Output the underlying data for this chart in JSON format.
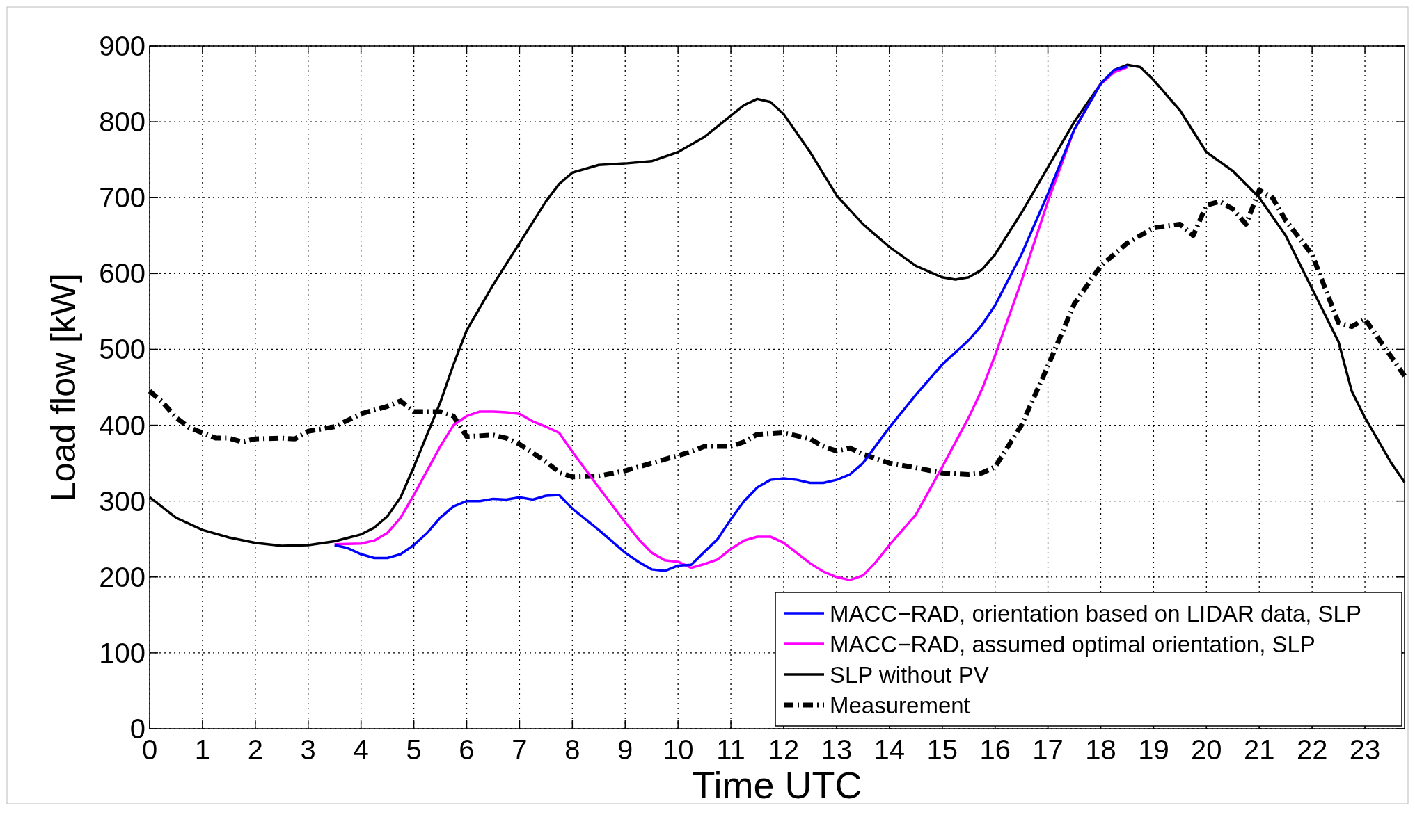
{
  "chart_data": {
    "type": "line",
    "xlabel": "Time UTC",
    "ylabel": "Load flow [kW]",
    "xlim": [
      0,
      23.75
    ],
    "xticks": [
      0,
      1,
      2,
      3,
      4,
      5,
      6,
      7,
      8,
      9,
      10,
      11,
      12,
      13,
      14,
      15,
      16,
      17,
      18,
      19,
      20,
      21,
      22,
      23
    ],
    "ylim": [
      0,
      900
    ],
    "yticks": [
      0,
      100,
      200,
      300,
      400,
      500,
      600,
      700,
      800,
      900
    ],
    "grid": true,
    "legend": "bottom right",
    "line_style": "solid",
    "series": [
      {
        "name": "MACC−RAD, orientation based on LIDAR data, SLP",
        "color": "#0000ff",
        "x": [
          3.5,
          3.75,
          4,
          4.25,
          4.5,
          4.75,
          5,
          5.25,
          5.5,
          5.75,
          6,
          6.25,
          6.5,
          6.75,
          7,
          7.25,
          7.5,
          7.75,
          8,
          8.5,
          9,
          9.25,
          9.5,
          9.75,
          10,
          10.25,
          10.5,
          10.75,
          11,
          11.25,
          11.5,
          11.75,
          12,
          12.25,
          12.5,
          12.75,
          13,
          13.25,
          13.5,
          14,
          14.5,
          15,
          15.5,
          15.75,
          16,
          16.5,
          17,
          17.5,
          18,
          18.25,
          18.5
        ],
        "values": [
          242,
          238,
          230,
          225,
          225,
          230,
          242,
          258,
          278,
          293,
          300,
          300,
          303,
          302,
          305,
          302,
          307,
          308,
          290,
          262,
          232,
          220,
          210,
          208,
          215,
          216,
          233,
          250,
          276,
          300,
          318,
          328,
          330,
          328,
          324,
          324,
          328,
          335,
          350,
          397,
          440,
          480,
          512,
          532,
          558,
          625,
          705,
          790,
          850,
          868,
          873
        ]
      },
      {
        "name": "MACC−RAD, assumed optimal orientation, SLP",
        "color": "#ff00ff",
        "x": [
          3.5,
          4,
          4.25,
          4.5,
          4.75,
          5,
          5.5,
          5.75,
          6,
          6.25,
          6.5,
          6.75,
          7,
          7.25,
          7.5,
          7.75,
          8,
          8.5,
          9,
          9.25,
          9.5,
          9.75,
          10,
          10.25,
          10.5,
          10.75,
          11,
          11.25,
          11.5,
          11.75,
          12,
          12.5,
          12.75,
          13,
          13.25,
          13.5,
          13.75,
          14,
          14.5,
          15,
          15.5,
          15.75,
          16,
          16.5,
          17,
          17.5,
          18,
          18.25,
          18.5
        ],
        "values": [
          243,
          244,
          248,
          258,
          278,
          308,
          372,
          400,
          412,
          418,
          418,
          417,
          415,
          405,
          398,
          390,
          365,
          318,
          272,
          250,
          232,
          222,
          220,
          212,
          217,
          223,
          237,
          248,
          253,
          253,
          245,
          218,
          207,
          200,
          196,
          202,
          220,
          242,
          282,
          345,
          410,
          447,
          492,
          590,
          695,
          790,
          850,
          865,
          872
        ]
      },
      {
        "name": "SLP without PV",
        "color": "#000000",
        "x": [
          0,
          0.5,
          1,
          1.5,
          2,
          2.5,
          3,
          3.5,
          4,
          4.25,
          4.5,
          4.75,
          5,
          5.5,
          5.75,
          6,
          6.5,
          7,
          7.5,
          7.75,
          8,
          8.5,
          9,
          9.5,
          10,
          10.5,
          11,
          11.25,
          11.5,
          11.75,
          12,
          12.5,
          13,
          13.5,
          14,
          14.5,
          15,
          15.25,
          15.5,
          15.75,
          16,
          16.5,
          17,
          17.5,
          18,
          18.25,
          18.5,
          18.75,
          19,
          19.5,
          20,
          20.5,
          21,
          21.5,
          22,
          22.5,
          22.75,
          23,
          23.5,
          23.75
        ],
        "values": [
          305,
          278,
          262,
          252,
          245,
          241,
          242,
          247,
          256,
          265,
          280,
          305,
          345,
          430,
          480,
          525,
          585,
          640,
          695,
          718,
          733,
          743,
          745,
          748,
          760,
          780,
          808,
          822,
          830,
          826,
          810,
          760,
          703,
          665,
          635,
          610,
          595,
          592,
          595,
          605,
          625,
          680,
          740,
          800,
          850,
          868,
          875,
          872,
          855,
          815,
          760,
          735,
          700,
          650,
          580,
          510,
          445,
          410,
          350,
          325
        ]
      },
      {
        "name": "Measurement",
        "color": "#000000",
        "line_style": "dashdot",
        "x": [
          0,
          0.25,
          0.5,
          0.75,
          1,
          1.25,
          1.5,
          1.75,
          2,
          2.5,
          2.75,
          3,
          3.5,
          4,
          4.5,
          4.75,
          5,
          5.5,
          5.75,
          6,
          6.5,
          6.75,
          7,
          7.5,
          7.75,
          8,
          8.5,
          9,
          9.5,
          10,
          10.25,
          10.5,
          11,
          11.25,
          11.5,
          12,
          12.5,
          12.75,
          13,
          13.25,
          13.5,
          14,
          14.5,
          15,
          15.5,
          15.75,
          16,
          16.5,
          17,
          17.5,
          18,
          18.5,
          19,
          19.5,
          19.75,
          20,
          20.25,
          20.5,
          20.75,
          21,
          21.25,
          21.5,
          22,
          22.5,
          22.75,
          23,
          23.5,
          23.75
        ],
        "values": [
          445,
          430,
          410,
          397,
          390,
          383,
          383,
          378,
          382,
          383,
          382,
          392,
          398,
          415,
          425,
          432,
          418,
          418,
          412,
          385,
          387,
          383,
          375,
          352,
          338,
          332,
          333,
          340,
          350,
          360,
          365,
          372,
          372,
          378,
          388,
          390,
          382,
          372,
          366,
          370,
          362,
          350,
          344,
          337,
          335,
          337,
          345,
          400,
          478,
          560,
          610,
          640,
          660,
          665,
          650,
          690,
          695,
          685,
          665,
          710,
          700,
          670,
          625,
          535,
          530,
          540,
          490,
          465
        ]
      }
    ]
  }
}
